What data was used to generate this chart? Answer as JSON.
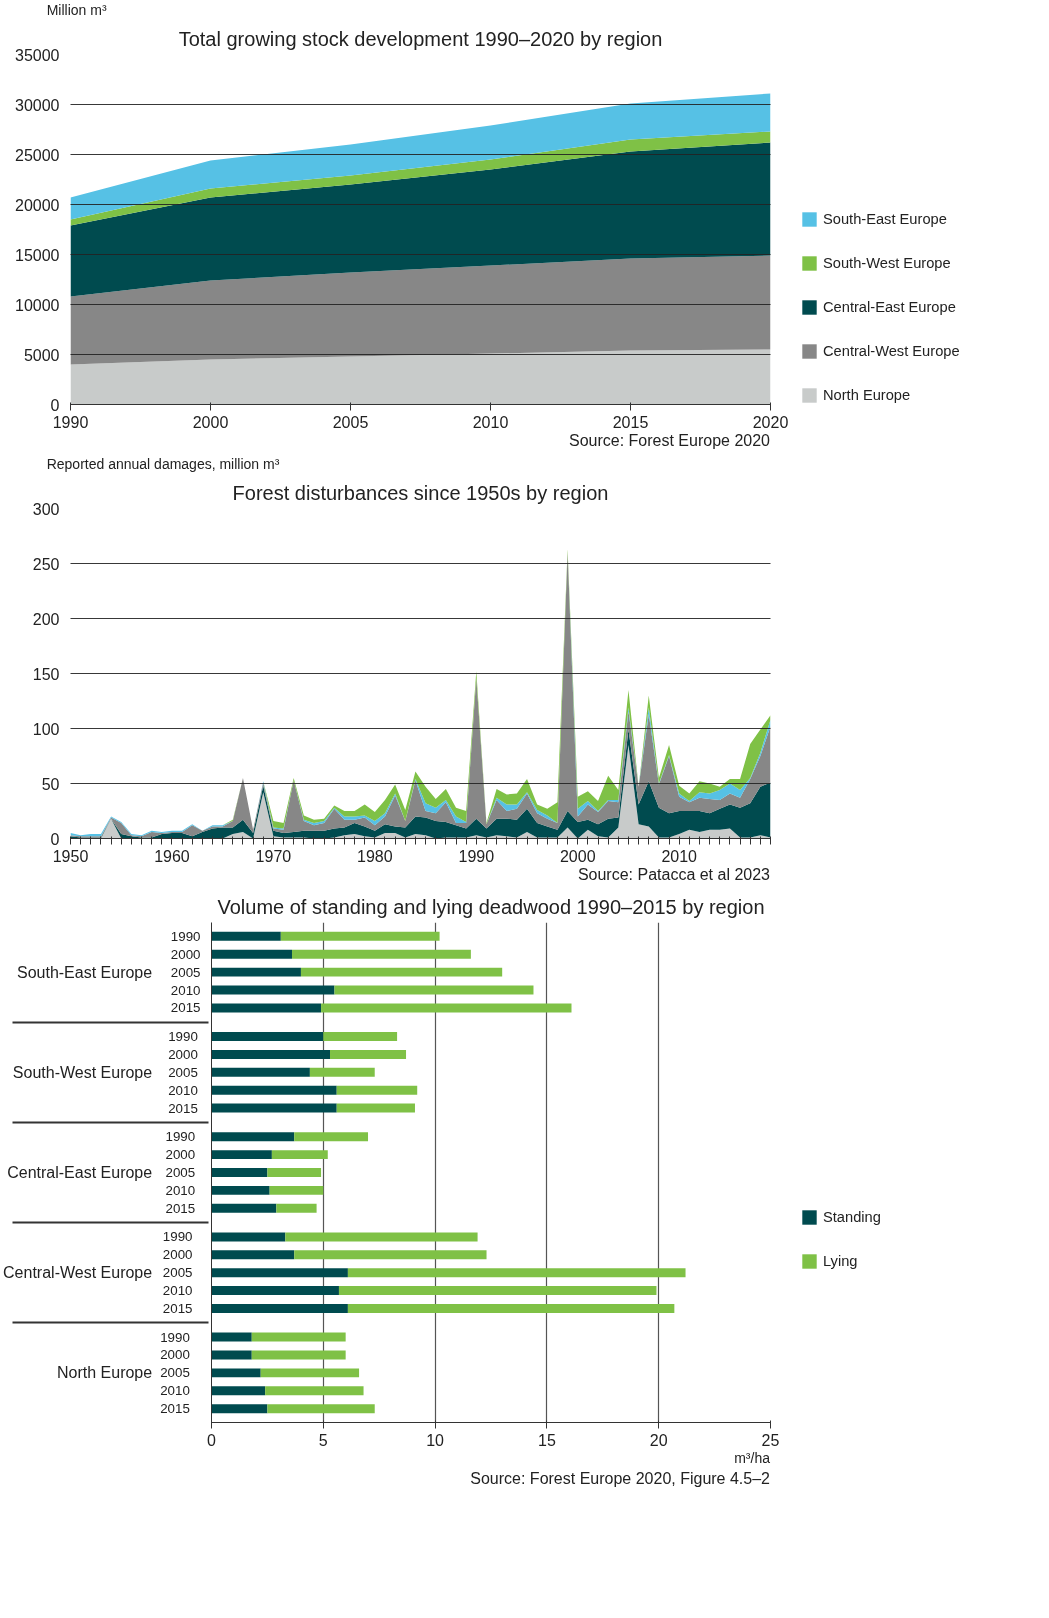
{
  "chart_data": [
    {
      "type": "area",
      "title": "Total growing stock development 1990–2020 by region",
      "ylabel": "Million m³",
      "stacked": true,
      "legend": "right",
      "grid": "y",
      "categories": [
        "1990",
        "2000",
        "2005",
        "2010",
        "2015",
        "2020"
      ],
      "ylim": [
        0,
        35000
      ],
      "yticks": [
        0,
        5000,
        10000,
        15000,
        20000,
        25000,
        30000,
        35000
      ],
      "series": [
        {
          "name": "North Europe",
          "color": "#c8cbca",
          "values": [
            4000,
            4500,
            4800,
            5100,
            5400,
            5500
          ]
        },
        {
          "name": "Central-West Europe",
          "color": "#878787",
          "values": [
            6800,
            7900,
            8400,
            8800,
            9200,
            9400
          ]
        },
        {
          "name": "Central-East Europe",
          "color": "#004b4f",
          "values": [
            7100,
            8300,
            8800,
            9600,
            10700,
            11300
          ]
        },
        {
          "name": "South-West Europe",
          "color": "#7fc146",
          "values": [
            600,
            900,
            900,
            1000,
            1200,
            1100
          ]
        },
        {
          "name": "South-East Europe",
          "color": "#56c1e5",
          "values": [
            2200,
            2800,
            3100,
            3400,
            3600,
            3800
          ]
        }
      ],
      "annotations": [
        "Source: Forest Europe 2020"
      ]
    },
    {
      "type": "area",
      "title": "Forest disturbances since 1950s by region",
      "ylabel": "Reported annual damages, million m³",
      "stacked": true,
      "grid": "y",
      "x": [
        1950,
        1951,
        1952,
        1953,
        1954,
        1955,
        1956,
        1957,
        1958,
        1959,
        1960,
        1961,
        1962,
        1963,
        1964,
        1965,
        1966,
        1967,
        1968,
        1969,
        1970,
        1971,
        1972,
        1973,
        1974,
        1975,
        1976,
        1977,
        1978,
        1979,
        1980,
        1981,
        1982,
        1983,
        1984,
        1985,
        1986,
        1987,
        1988,
        1989,
        1990,
        1991,
        1992,
        1993,
        1994,
        1995,
        1996,
        1997,
        1998,
        1999,
        2000,
        2001,
        2002,
        2003,
        2004,
        2005,
        2006,
        2007,
        2008,
        2009,
        2010,
        2011,
        2012,
        2013,
        2014,
        2015,
        2016,
        2017,
        2018,
        2019
      ],
      "xlim": [
        1950,
        2019
      ],
      "xticks": [
        1950,
        {
          "value": 1951,
          "label": null
        },
        {
          "value": 1952,
          "label": null
        },
        {
          "value": 1953,
          "label": null
        },
        {
          "value": 1954,
          "label": null
        },
        {
          "value": 1955,
          "label": null
        },
        {
          "value": 1956,
          "label": null
        },
        {
          "value": 1957,
          "label": null
        },
        {
          "value": 1958,
          "label": null
        },
        {
          "value": 1959,
          "label": null
        },
        1960,
        {
          "value": 1961,
          "label": null
        },
        {
          "value": 1962,
          "label": null
        },
        {
          "value": 1963,
          "label": null
        },
        {
          "value": 1964,
          "label": null
        },
        {
          "value": 1965,
          "label": null
        },
        {
          "value": 1966,
          "label": null
        },
        {
          "value": 1967,
          "label": null
        },
        {
          "value": 1968,
          "label": null
        },
        {
          "value": 1969,
          "label": null
        },
        1970,
        {
          "value": 1971,
          "label": null
        },
        {
          "value": 1972,
          "label": null
        },
        {
          "value": 1973,
          "label": null
        },
        {
          "value": 1974,
          "label": null
        },
        {
          "value": 1975,
          "label": null
        },
        {
          "value": 1976,
          "label": null
        },
        {
          "value": 1977,
          "label": null
        },
        {
          "value": 1978,
          "label": null
        },
        {
          "value": 1979,
          "label": null
        },
        1980,
        {
          "value": 1981,
          "label": null
        },
        {
          "value": 1982,
          "label": null
        },
        {
          "value": 1983,
          "label": null
        },
        {
          "value": 1984,
          "label": null
        },
        {
          "value": 1985,
          "label": null
        },
        {
          "value": 1986,
          "label": null
        },
        {
          "value": 1987,
          "label": null
        },
        {
          "value": 1988,
          "label": null
        },
        {
          "value": 1989,
          "label": null
        },
        1990,
        {
          "value": 1991,
          "label": null
        },
        {
          "value": 1992,
          "label": null
        },
        {
          "value": 1993,
          "label": null
        },
        {
          "value": 1994,
          "label": null
        },
        {
          "value": 1995,
          "label": null
        },
        {
          "value": 1996,
          "label": null
        },
        {
          "value": 1997,
          "label": null
        },
        {
          "value": 1998,
          "label": null
        },
        {
          "value": 1999,
          "label": null
        },
        2000,
        {
          "value": 2001,
          "label": null
        },
        {
          "value": 2002,
          "label": null
        },
        {
          "value": 2003,
          "label": null
        },
        {
          "value": 2004,
          "label": null
        },
        {
          "value": 2005,
          "label": null
        },
        {
          "value": 2006,
          "label": null
        },
        {
          "value": 2007,
          "label": null
        },
        {
          "value": 2008,
          "label": null
        },
        {
          "value": 2009,
          "label": null
        },
        2010,
        {
          "value": 2011,
          "label": null
        },
        {
          "value": 2012,
          "label": null
        },
        {
          "value": 2013,
          "label": null
        },
        {
          "value": 2014,
          "label": null
        },
        {
          "value": 2015,
          "label": null
        },
        {
          "value": 2016,
          "label": null
        },
        {
          "value": 2017,
          "label": null
        },
        {
          "value": 2018,
          "label": null
        },
        {
          "value": 2019,
          "label": null
        }
      ],
      "ylim": [
        0,
        300
      ],
      "yticks": [
        0,
        50,
        100,
        150,
        200,
        250,
        300
      ],
      "series": [
        {
          "color": "#c8cbca",
          "values": [
            0,
            0,
            0,
            0,
            18,
            0,
            0,
            0,
            0,
            0,
            0,
            0,
            0,
            0,
            0,
            0,
            4,
            6,
            0,
            42,
            2,
            1,
            1,
            1,
            0,
            0,
            1,
            3,
            4,
            2,
            1,
            5,
            5,
            1,
            4,
            3,
            0,
            1,
            1,
            1,
            3,
            1,
            3,
            2,
            1,
            6,
            1,
            1,
            1,
            10,
            0,
            8,
            2,
            1,
            10,
            85,
            13,
            11,
            1,
            1,
            4,
            8,
            6,
            8,
            8,
            9,
            1,
            1,
            3,
            1
          ]
        },
        {
          "color": "#004b4f",
          "values": [
            2,
            1,
            1,
            1,
            0,
            4,
            2,
            1,
            1,
            4,
            5,
            5,
            2,
            6,
            9,
            10,
            6,
            11,
            5,
            6,
            5,
            4,
            5,
            6,
            7,
            7,
            8,
            7,
            10,
            9,
            6,
            8,
            6,
            9,
            16,
            16,
            16,
            14,
            11,
            8,
            15,
            8,
            15,
            16,
            16,
            21,
            13,
            10,
            7,
            15,
            15,
            9,
            11,
            17,
            9,
            14,
            18,
            41,
            27,
            22,
            21,
            17,
            19,
            15,
            19,
            22,
            27,
            31,
            44,
            50
          ]
        },
        {
          "color": "#878787",
          "values": [
            1,
            1,
            1,
            1,
            1,
            10,
            1,
            1,
            5,
            1,
            1,
            1,
            10,
            1,
            2,
            1,
            6,
            38,
            3,
            3,
            2,
            3,
            47,
            9,
            5,
            7,
            18,
            7,
            3,
            8,
            5,
            7,
            28,
            6,
            33,
            6,
            7,
            18,
            2,
            5,
            128,
            4,
            17,
            7,
            10,
            14,
            9,
            7,
            6,
            235,
            5,
            14,
            11,
            16,
            14,
            17,
            16,
            61,
            21,
            52,
            13,
            8,
            12,
            13,
            8,
            10,
            9,
            22,
            28,
            51
          ]
        },
        {
          "color": "#56c1e5",
          "values": [
            2,
            1,
            2,
            2,
            1,
            1,
            1,
            1,
            1,
            1,
            1,
            1,
            1,
            0,
            1,
            1,
            0,
            0,
            0,
            1,
            1,
            1,
            0,
            1,
            2,
            2,
            1,
            3,
            3,
            2,
            4,
            3,
            2,
            0,
            1,
            7,
            5,
            2,
            6,
            1,
            0,
            0,
            2,
            6,
            4,
            1,
            3,
            3,
            0,
            0,
            7,
            3,
            1,
            1,
            2,
            3,
            0,
            6,
            1,
            1,
            3,
            1,
            5,
            5,
            9,
            9,
            7,
            1,
            3,
            6
          ]
        },
        {
          "color": "#7fc146",
          "values": [
            0,
            0,
            0,
            0,
            0,
            0,
            0,
            0,
            0,
            0,
            0,
            0,
            0,
            0,
            0,
            0,
            1,
            0,
            0,
            0,
            6,
            5,
            2,
            4,
            3,
            2,
            2,
            5,
            5,
            10,
            8,
            12,
            8,
            10,
            7,
            15,
            8,
            10,
            8,
            10,
            6,
            1,
            8,
            9,
            10,
            12,
            5,
            6,
            19,
            3,
            11,
            9,
            9,
            22,
            9,
            16,
            0,
            11,
            5,
            9,
            7,
            7,
            10,
            9,
            3,
            4,
            10,
            31,
            21,
            4
          ]
        }
      ],
      "annotations": [
        "Source: Patacca et al 2023"
      ]
    },
    {
      "type": "bar",
      "orientation": "horizontal",
      "stacked": true,
      "title": "Volume of standing and lying deadwood 1990–2015 by region",
      "xlabel": "m³/ha",
      "legend": "right",
      "grid": "x",
      "categories": [
        "1990",
        "2000",
        "2005",
        "2010",
        "2015",
        "1990",
        "2000",
        "2005",
        "2010",
        "2015",
        "1990",
        "2000",
        "2005",
        "2010",
        "2015",
        "1990",
        "2000",
        "2005",
        "2010",
        "2015",
        "1990",
        "2000",
        "2005",
        "2010",
        "2015"
      ],
      "xlim": [
        0,
        25
      ],
      "xticks": [
        0,
        5,
        10,
        15,
        20,
        25
      ],
      "series": [
        {
          "name": "Standing",
          "color": "#004b4f",
          "values": [
            3.1,
            3.6,
            4.0,
            5.5,
            4.9,
            5.0,
            5.3,
            4.4,
            5.6,
            5.6,
            3.7,
            2.7,
            2.5,
            2.6,
            2.9,
            3.3,
            3.7,
            6.1,
            5.7,
            6.1,
            1.8,
            1.8,
            2.2,
            2.4,
            2.5
          ]
        },
        {
          "name": "Lying",
          "color": "#7fc146",
          "values": [
            7.1,
            8.0,
            9.0,
            8.9,
            11.2,
            3.3,
            3.4,
            2.9,
            3.6,
            3.5,
            3.3,
            2.5,
            2.4,
            2.4,
            1.8,
            8.6,
            8.6,
            15.1,
            14.2,
            14.6,
            4.2,
            4.2,
            4.4,
            4.4,
            4.8
          ]
        }
      ],
      "annotations": [
        "South-East Europe",
        "South-West Europe",
        "Central-East Europe",
        "Central-West Europe",
        "North Europe",
        "Source: Forest Europe 2020, Figure 4.5–2"
      ]
    }
  ]
}
